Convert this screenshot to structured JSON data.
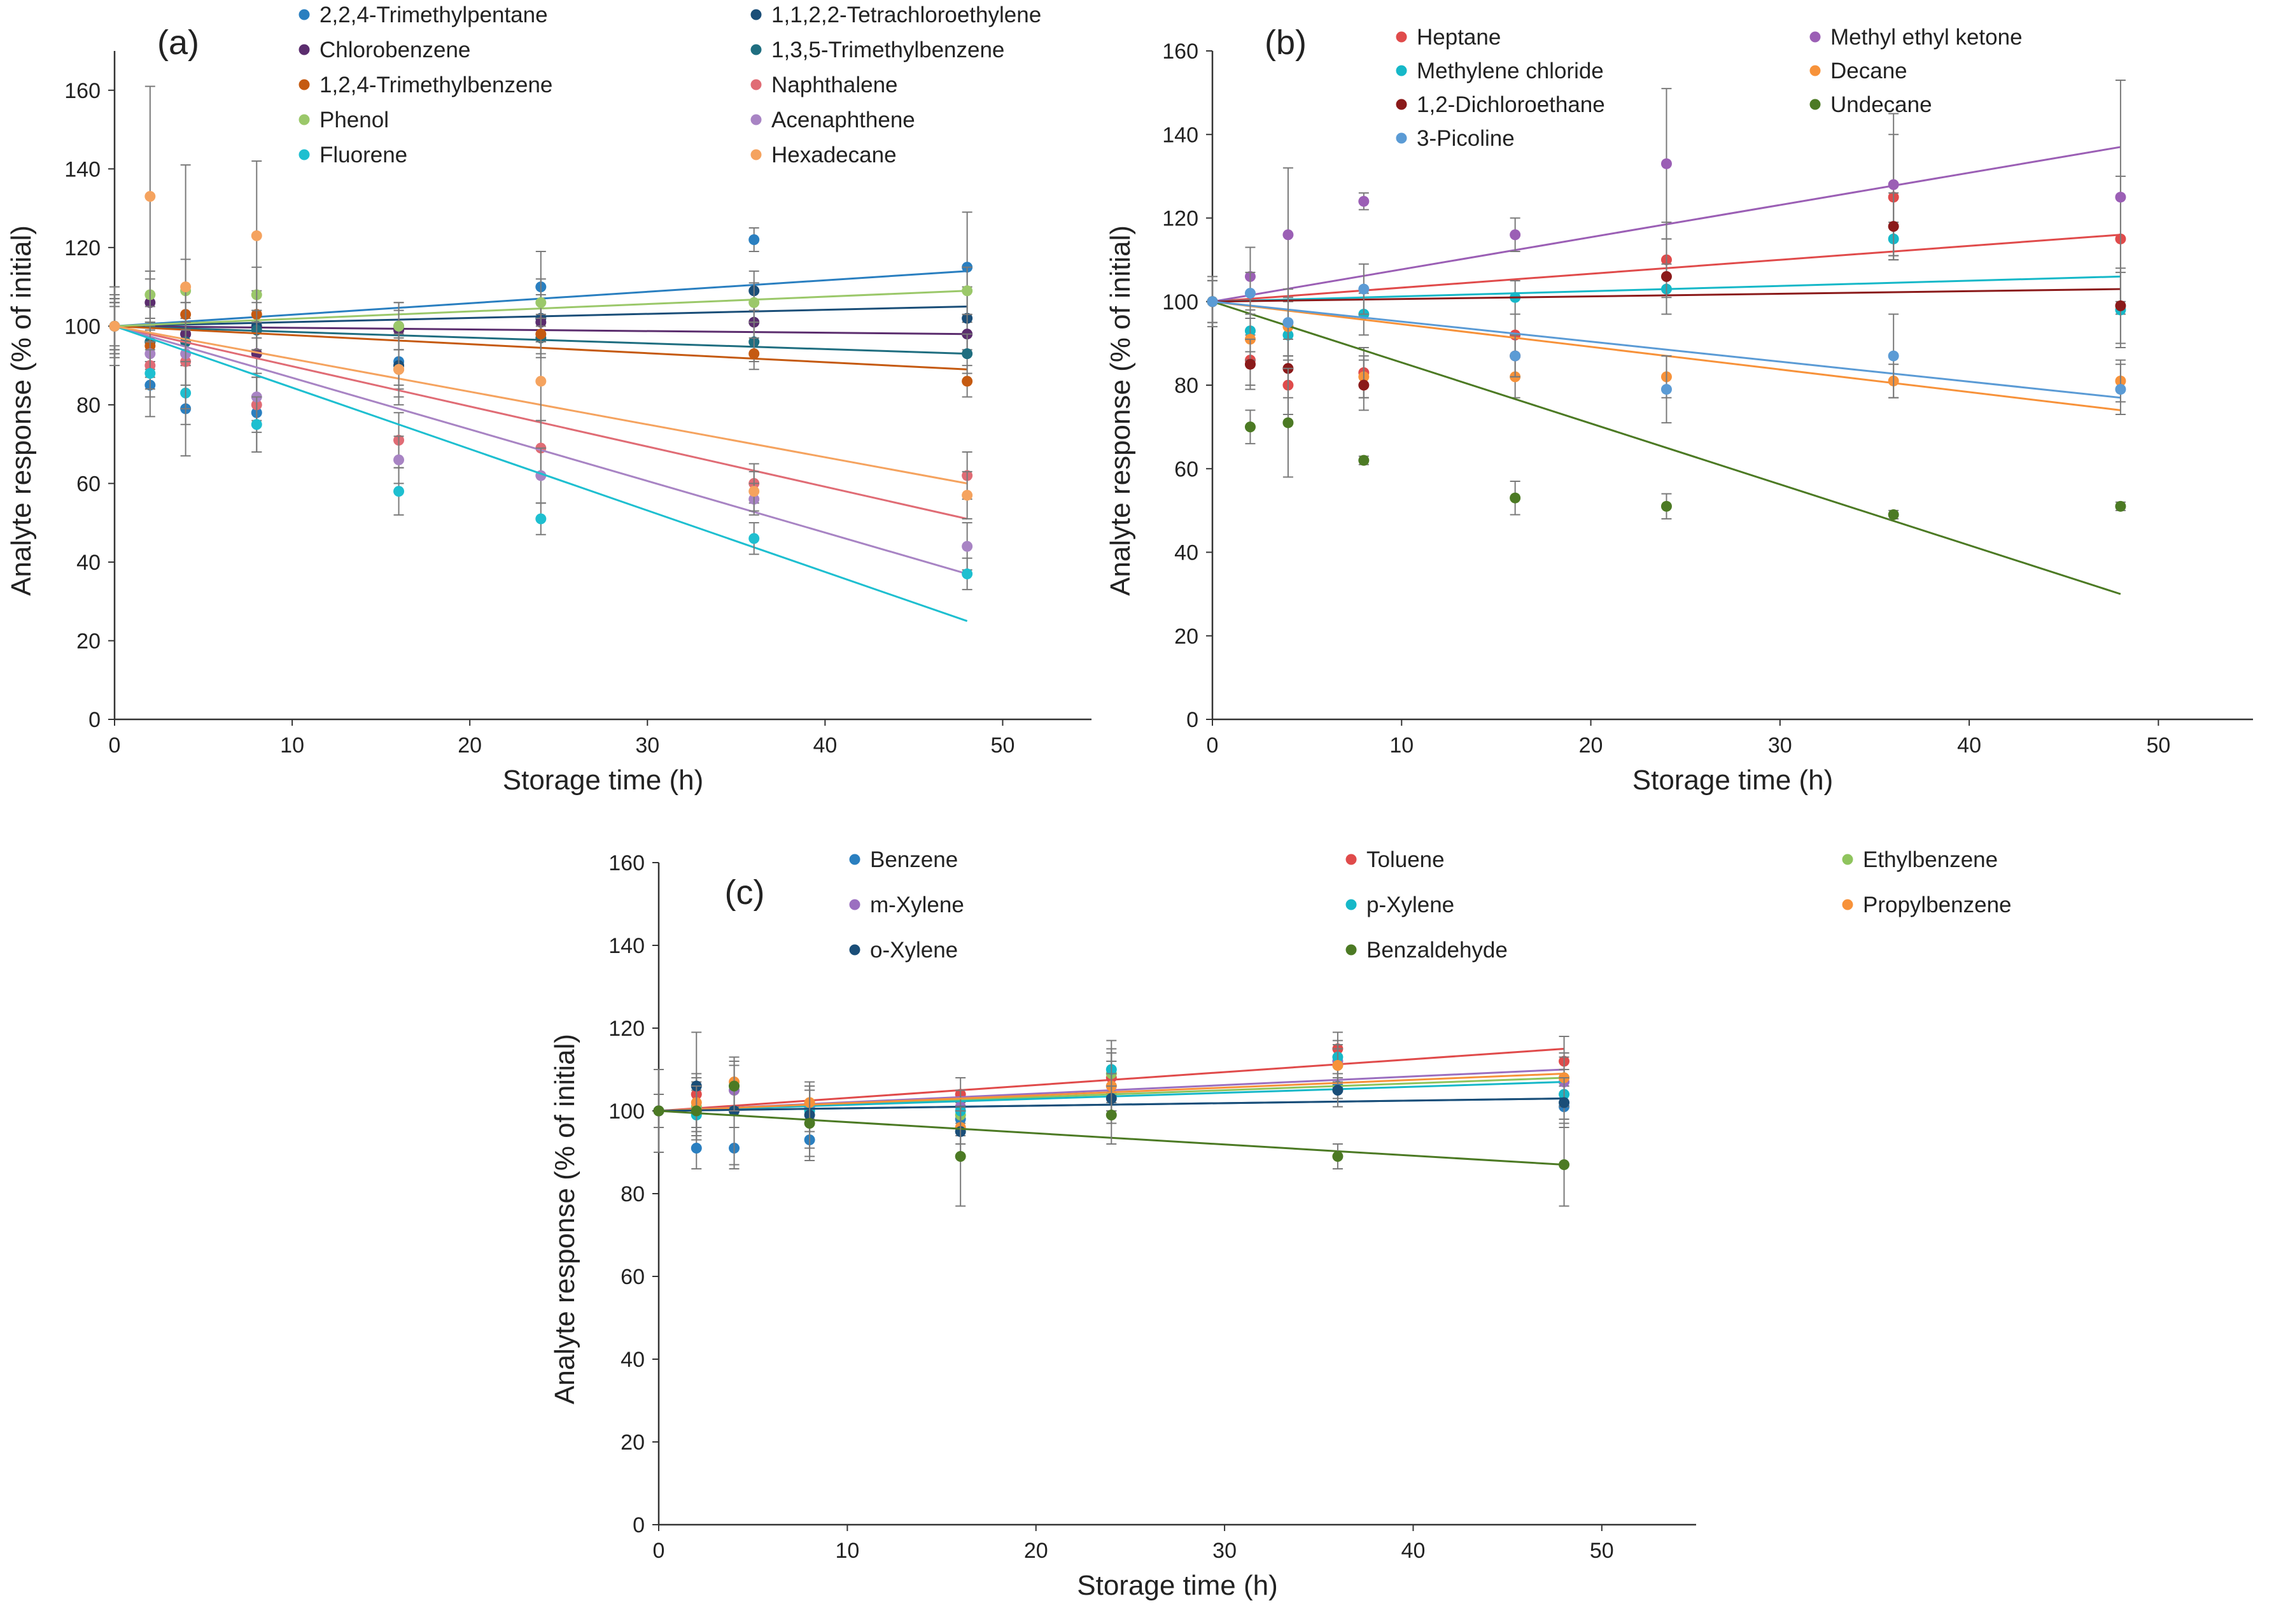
{
  "chart_data": [
    {
      "panel": "(a)",
      "type": "scatter",
      "xlabel": "Storage time (h)",
      "ylabel": "Analyte response (% of initial)",
      "xlim": [
        0,
        55
      ],
      "ylim": [
        0,
        170
      ],
      "xticks": [
        "0",
        "10",
        "20",
        "30",
        "40",
        "50"
      ],
      "yticks": [
        "0",
        "20",
        "40",
        "60",
        "80",
        "100",
        "120",
        "140",
        "160"
      ],
      "legend_position": "top",
      "x": [
        0,
        2,
        4,
        8,
        16,
        24,
        36,
        48
      ],
      "series": [
        {
          "name": "2,2,4-Trimethylpentane",
          "color": "#2a7fc0",
          "values": [
            100,
            85,
            79,
            78,
            91,
            110,
            122,
            115
          ],
          "error": [
            10,
            8,
            12,
            10,
            6,
            9,
            3,
            14
          ],
          "fit_end": 114
        },
        {
          "name": "1,1,2,2-Tetrachloroethylene",
          "color": "#1a4e78",
          "values": [
            100,
            96,
            98,
            100,
            90,
            102,
            109,
            102
          ],
          "error": [
            6,
            5,
            8,
            6,
            8,
            6,
            5,
            8
          ],
          "fit_end": 105
        },
        {
          "name": "Chlorobenzene",
          "color": "#5b2d6e",
          "values": [
            100,
            106,
            98,
            93,
            99,
            101,
            101,
            98
          ],
          "error": [
            6,
            6,
            8,
            6,
            5,
            5,
            5,
            5
          ],
          "fit_end": 98
        },
        {
          "name": "1,3,5-Trimethylbenzene",
          "color": "#1f6e80",
          "values": [
            100,
            96,
            96,
            99,
            100,
            97,
            96,
            93
          ],
          "error": [
            5,
            5,
            6,
            5,
            6,
            5,
            5,
            5
          ],
          "fit_end": 93
        },
        {
          "name": "1,2,4-Trimethylbenzene",
          "color": "#c55a11",
          "values": [
            100,
            95,
            103,
            103,
            89,
            98,
            93,
            86
          ],
          "error": [
            6,
            6,
            7,
            6,
            5,
            5,
            4,
            4
          ],
          "fit_end": 89
        },
        {
          "name": "Naphthalene",
          "color": "#e06c75",
          "values": [
            100,
            90,
            91,
            80,
            71,
            69,
            60,
            62
          ],
          "error": [
            8,
            6,
            8,
            7,
            7,
            7,
            5,
            6
          ],
          "fit_end": 51
        },
        {
          "name": "Phenol",
          "color": "#9bc86a",
          "values": [
            100,
            108,
            109,
            108,
            100,
            106,
            106,
            109
          ],
          "error": [
            6,
            6,
            8,
            7,
            6,
            6,
            5,
            6
          ],
          "fit_end": 109
        },
        {
          "name": "Acenaphthene",
          "color": "#a884c4",
          "values": [
            100,
            93,
            93,
            82,
            66,
            62,
            56,
            44
          ],
          "error": [
            7,
            6,
            8,
            6,
            6,
            7,
            4,
            6
          ],
          "fit_end": 37
        },
        {
          "name": "Fluorene",
          "color": "#1ebfd0",
          "values": [
            100,
            88,
            83,
            75,
            58,
            51,
            46,
            37
          ],
          "error": [
            7,
            6,
            8,
            7,
            6,
            4,
            4,
            4
          ],
          "fit_end": 25
        },
        {
          "name": "Hexadecane",
          "color": "#f5a35f",
          "values": [
            100,
            133,
            110,
            123,
            89,
            86,
            58,
            57
          ],
          "error": [
            7,
            28,
            31,
            19,
            9,
            10,
            5,
            6
          ],
          "fit_end": 60
        }
      ]
    },
    {
      "panel": "(b)",
      "type": "scatter",
      "xlabel": "Storage time (h)",
      "ylabel": "Analyte response (% of initial)",
      "xlim": [
        0,
        55
      ],
      "ylim": [
        0,
        160
      ],
      "xticks": [
        "0",
        "10",
        "20",
        "30",
        "40",
        "50"
      ],
      "yticks": [
        "0",
        "20",
        "40",
        "60",
        "80",
        "100",
        "120",
        "140",
        "160"
      ],
      "legend_position": "top",
      "x": [
        0,
        2,
        4,
        8,
        16,
        24,
        36,
        48
      ],
      "series": [
        {
          "name": "Heptane",
          "color": "#e04b4b",
          "values": [
            100,
            86,
            80,
            83,
            92,
            110,
            125,
            115
          ],
          "error": [
            6,
            6,
            7,
            6,
            5,
            9,
            15,
            15
          ],
          "fit_end": 116
        },
        {
          "name": "Methyl ethyl ketone",
          "color": "#9b5fb5",
          "values": [
            100,
            106,
            116,
            124,
            116,
            133,
            128,
            125
          ],
          "error": [
            5,
            7,
            16,
            2,
            4,
            18,
            17,
            28
          ],
          "fit_end": 137
        },
        {
          "name": "Methylene chloride",
          "color": "#16b8c8",
          "values": [
            100,
            93,
            92,
            97,
            101,
            103,
            115,
            98
          ],
          "error": [
            5,
            5,
            6,
            5,
            4,
            6,
            4,
            9
          ],
          "fit_end": 106
        },
        {
          "name": "Decane",
          "color": "#f7923a",
          "values": [
            100,
            91,
            94,
            82,
            82,
            82,
            81,
            81
          ],
          "error": [
            5,
            5,
            7,
            5,
            5,
            5,
            4,
            5
          ],
          "fit_end": 74
        },
        {
          "name": "1,2-Dichloroethane",
          "color": "#8b1a1a",
          "values": [
            100,
            85,
            84,
            80,
            87,
            106,
            118,
            99
          ],
          "error": [
            5,
            6,
            7,
            6,
            5,
            9,
            8,
            9
          ],
          "fit_end": 103
        },
        {
          "name": "Undecane",
          "color": "#4c7a24",
          "values": [
            100,
            70,
            71,
            62,
            53,
            51,
            49,
            51
          ],
          "error": [
            5,
            4,
            13,
            1,
            4,
            3,
            1,
            1
          ],
          "fit_end": 30
        },
        {
          "name": "3-Picoline",
          "color": "#5b9bd5",
          "values": [
            100,
            102,
            95,
            103,
            87,
            79,
            87,
            79
          ],
          "error": [
            5,
            5,
            8,
            6,
            5,
            8,
            10,
            6
          ],
          "fit_end": 77
        }
      ]
    },
    {
      "panel": "(c)",
      "type": "scatter",
      "xlabel": "Storage time (h)",
      "ylabel": "Analyte response (% of initial)",
      "xlim": [
        0,
        55
      ],
      "ylim": [
        0,
        160
      ],
      "xticks": [
        "0",
        "10",
        "20",
        "30",
        "40",
        "50"
      ],
      "yticks": [
        "0",
        "20",
        "40",
        "60",
        "80",
        "100",
        "120",
        "140",
        "160"
      ],
      "legend_position": "top",
      "x": [
        0,
        2,
        4,
        8,
        16,
        24,
        36,
        48
      ],
      "series": [
        {
          "name": "Benzene",
          "color": "#2a7fc0",
          "values": [
            100,
            91,
            91,
            93,
            98,
            104,
            106,
            101
          ],
          "error": [
            4,
            5,
            5,
            4,
            4,
            4,
            3,
            3
          ],
          "fit_end": 103
        },
        {
          "name": "Toluene",
          "color": "#e04b4b",
          "values": [
            100,
            104,
            106,
            101,
            104,
            108,
            115,
            112
          ],
          "error": [
            4,
            5,
            6,
            4,
            4,
            6,
            4,
            6
          ],
          "fit_end": 115
        },
        {
          "name": "Ethylbenzene",
          "color": "#8fc45d",
          "values": [
            100,
            101,
            105,
            102,
            99,
            109,
            111,
            108
          ],
          "error": [
            4,
            6,
            6,
            4,
            4,
            6,
            4,
            6
          ],
          "fit_end": 108
        },
        {
          "name": "m-Xylene",
          "color": "#9b6fc0",
          "values": [
            100,
            100,
            105,
            101,
            101,
            106,
            112,
            107
          ],
          "error": [
            4,
            6,
            6,
            4,
            4,
            6,
            4,
            6
          ],
          "fit_end": 110
        },
        {
          "name": "p-Xylene",
          "color": "#16b8c8",
          "values": [
            100,
            99,
            106,
            100,
            100,
            110,
            113,
            104
          ],
          "error": [
            4,
            6,
            6,
            5,
            5,
            7,
            4,
            6
          ],
          "fit_end": 107
        },
        {
          "name": "Propylbenzene",
          "color": "#f7923a",
          "values": [
            100,
            102,
            107,
            102,
            96,
            106,
            111,
            108
          ],
          "error": [
            4,
            6,
            6,
            4,
            4,
            6,
            4,
            6
          ],
          "fit_end": 109
        },
        {
          "name": "o-Xylene",
          "color": "#1a4e78",
          "values": [
            100,
            106,
            100,
            99,
            95,
            103,
            105,
            102
          ],
          "error": [
            4,
            13,
            13,
            8,
            6,
            6,
            4,
            6
          ],
          "fit_end": 103
        },
        {
          "name": "Benzaldehyde",
          "color": "#4c7a24",
          "values": [
            100,
            100,
            106,
            97,
            89,
            99,
            89,
            87
          ],
          "error": [
            10,
            6,
            6,
            9,
            12,
            7,
            3,
            10
          ],
          "fit_end": 87
        }
      ]
    }
  ]
}
